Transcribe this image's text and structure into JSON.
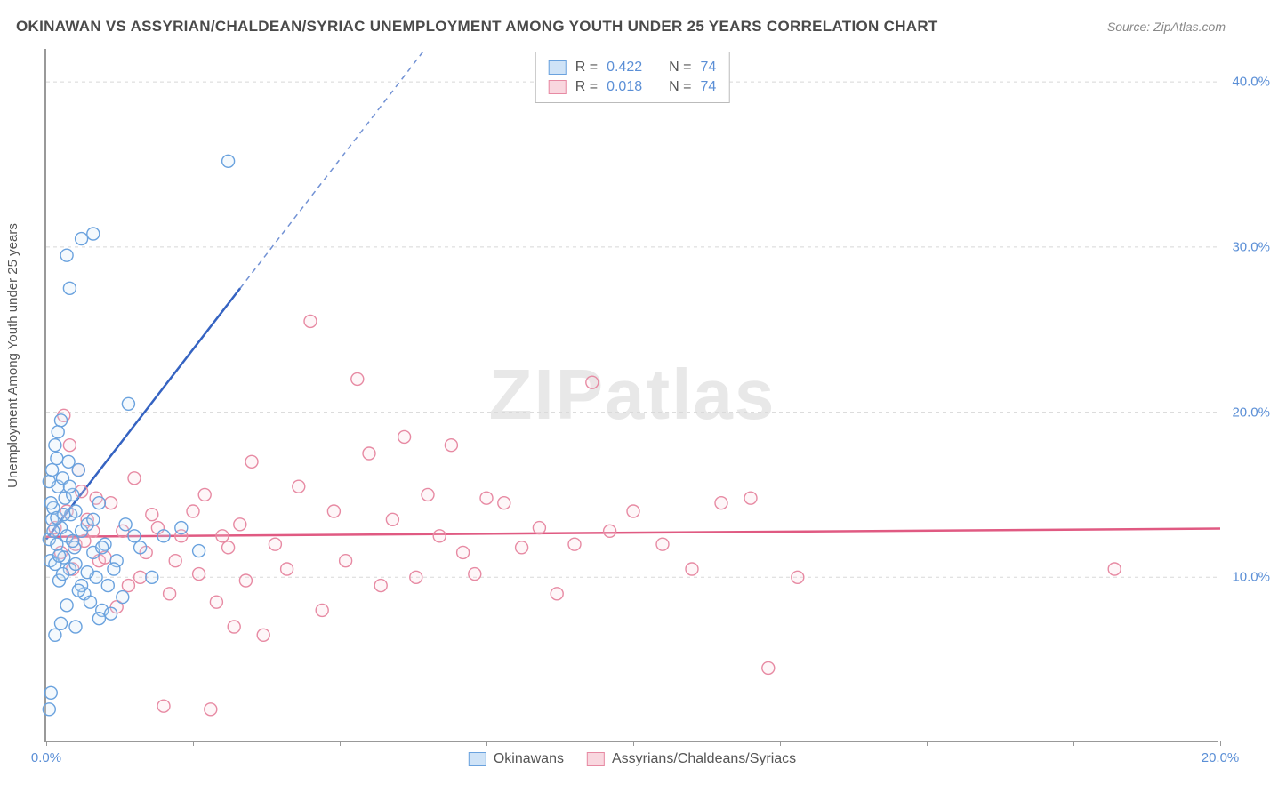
{
  "title": "OKINAWAN VS ASSYRIAN/CHALDEAN/SYRIAC UNEMPLOYMENT AMONG YOUTH UNDER 25 YEARS CORRELATION CHART",
  "source": "Source: ZipAtlas.com",
  "ylabel": "Unemployment Among Youth under 25 years",
  "watermark_bold": "ZIP",
  "watermark_rest": "atlas",
  "chart": {
    "type": "scatter",
    "background_color": "#ffffff",
    "grid_color": "#d8d8d8",
    "axis_color": "#999999",
    "xlim": [
      0,
      20
    ],
    "ylim": [
      0,
      42
    ],
    "x_ticks": [
      0,
      2.5,
      5,
      7.5,
      10,
      12.5,
      15,
      17.5,
      20
    ],
    "x_tick_labels_shown": {
      "0": "0.0%",
      "20": "20.0%"
    },
    "y_ticks": [
      10,
      20,
      30,
      40
    ],
    "y_tick_labels": [
      "10.0%",
      "20.0%",
      "30.0%",
      "40.0%"
    ],
    "marker_radius": 7,
    "marker_stroke_width": 1.4,
    "marker_fill_opacity": 0.22,
    "trend_line_width": 2.5,
    "trend_dash": "6,5"
  },
  "stats_legend": [
    {
      "swatch_fill": "#cfe3f7",
      "swatch_stroke": "#6aa2de",
      "r": "0.422",
      "n": "74"
    },
    {
      "swatch_fill": "#f9d7df",
      "swatch_stroke": "#e78aa3",
      "r": "0.018",
      "n": "74"
    }
  ],
  "series_legend": [
    {
      "swatch_fill": "#cfe3f7",
      "swatch_stroke": "#6aa2de",
      "label": "Okinawans"
    },
    {
      "swatch_fill": "#f9d7df",
      "swatch_stroke": "#e78aa3",
      "label": "Assyrians/Chaldeans/Syriacs"
    }
  ],
  "series": {
    "okinawans": {
      "stroke": "#6aa2de",
      "fill": "#cfe3f7",
      "trend_color": "#3563c2",
      "trend_intercept": 12.3,
      "trend_slope": 4.6,
      "points": [
        [
          0.05,
          12.3
        ],
        [
          0.07,
          11.0
        ],
        [
          0.1,
          13.5
        ],
        [
          0.12,
          14.2
        ],
        [
          0.15,
          10.8
        ],
        [
          0.18,
          12.0
        ],
        [
          0.2,
          15.5
        ],
        [
          0.22,
          9.8
        ],
        [
          0.25,
          13.0
        ],
        [
          0.28,
          16.0
        ],
        [
          0.3,
          11.2
        ],
        [
          0.32,
          14.8
        ],
        [
          0.35,
          12.5
        ],
        [
          0.38,
          17.0
        ],
        [
          0.4,
          10.5
        ],
        [
          0.42,
          13.8
        ],
        [
          0.45,
          15.0
        ],
        [
          0.48,
          11.8
        ],
        [
          0.5,
          14.0
        ],
        [
          0.55,
          16.5
        ],
        [
          0.6,
          12.8
        ],
        [
          0.65,
          9.0
        ],
        [
          0.7,
          13.2
        ],
        [
          0.75,
          8.5
        ],
        [
          0.8,
          11.5
        ],
        [
          0.85,
          10.0
        ],
        [
          0.9,
          14.5
        ],
        [
          0.95,
          8.0
        ],
        [
          1.0,
          12.0
        ],
        [
          1.05,
          9.5
        ],
        [
          1.1,
          7.8
        ],
        [
          1.2,
          11.0
        ],
        [
          1.3,
          8.8
        ],
        [
          1.4,
          20.5
        ],
        [
          1.5,
          12.5
        ],
        [
          0.15,
          18.0
        ],
        [
          0.18,
          17.2
        ],
        [
          0.2,
          18.8
        ],
        [
          0.25,
          19.5
        ],
        [
          0.6,
          30.5
        ],
        [
          0.35,
          29.5
        ],
        [
          0.4,
          27.5
        ],
        [
          0.8,
          30.8
        ],
        [
          3.1,
          35.2
        ],
        [
          2.6,
          11.6
        ],
        [
          0.25,
          7.2
        ],
        [
          0.35,
          8.3
        ],
        [
          0.5,
          7.0
        ],
        [
          0.6,
          9.5
        ],
        [
          0.9,
          7.5
        ],
        [
          0.15,
          6.5
        ],
        [
          0.08,
          3.0
        ],
        [
          0.05,
          2.0
        ],
        [
          0.12,
          12.8
        ],
        [
          0.18,
          13.6
        ],
        [
          0.08,
          14.5
        ],
        [
          0.05,
          15.8
        ],
        [
          0.1,
          16.5
        ],
        [
          0.22,
          11.3
        ],
        [
          0.28,
          10.2
        ],
        [
          0.3,
          13.8
        ],
        [
          0.4,
          15.5
        ],
        [
          0.45,
          12.2
        ],
        [
          0.5,
          10.8
        ],
        [
          0.55,
          9.2
        ],
        [
          0.7,
          10.3
        ],
        [
          0.8,
          13.5
        ],
        [
          0.95,
          11.8
        ],
        [
          1.15,
          10.5
        ],
        [
          1.35,
          13.2
        ],
        [
          1.6,
          11.8
        ],
        [
          1.8,
          10.0
        ],
        [
          2.0,
          12.5
        ],
        [
          2.3,
          13.0
        ]
      ]
    },
    "assyrians": {
      "stroke": "#e78aa3",
      "fill": "#f9d7df",
      "trend_color": "#e05a82",
      "trend_intercept": 12.45,
      "trend_slope": 0.025,
      "points": [
        [
          0.3,
          19.8
        ],
        [
          0.5,
          12.0
        ],
        [
          0.7,
          13.5
        ],
        [
          0.9,
          11.0
        ],
        [
          1.1,
          14.5
        ],
        [
          1.3,
          12.8
        ],
        [
          1.5,
          16.0
        ],
        [
          1.7,
          11.5
        ],
        [
          1.9,
          13.0
        ],
        [
          2.1,
          9.0
        ],
        [
          2.3,
          12.5
        ],
        [
          2.5,
          14.0
        ],
        [
          2.7,
          15.0
        ],
        [
          2.9,
          8.5
        ],
        [
          3.1,
          11.8
        ],
        [
          3.3,
          13.2
        ],
        [
          3.5,
          17.0
        ],
        [
          3.7,
          6.5
        ],
        [
          3.9,
          12.0
        ],
        [
          4.1,
          10.5
        ],
        [
          4.3,
          15.5
        ],
        [
          4.5,
          25.5
        ],
        [
          4.7,
          8.0
        ],
        [
          4.9,
          14.0
        ],
        [
          5.1,
          11.0
        ],
        [
          5.3,
          22.0
        ],
        [
          5.5,
          17.5
        ],
        [
          5.7,
          9.5
        ],
        [
          5.9,
          13.5
        ],
        [
          6.1,
          18.5
        ],
        [
          6.3,
          10.0
        ],
        [
          6.5,
          15.0
        ],
        [
          6.7,
          12.5
        ],
        [
          6.9,
          18.0
        ],
        [
          7.1,
          11.5
        ],
        [
          7.3,
          10.2
        ],
        [
          7.5,
          14.8
        ],
        [
          7.8,
          14.5
        ],
        [
          8.1,
          11.8
        ],
        [
          8.4,
          13.0
        ],
        [
          8.7,
          9.0
        ],
        [
          9.0,
          12.0
        ],
        [
          9.3,
          21.8
        ],
        [
          9.6,
          12.8
        ],
        [
          10.0,
          14.0
        ],
        [
          10.5,
          12.0
        ],
        [
          11.0,
          10.5
        ],
        [
          11.5,
          14.5
        ],
        [
          12.0,
          14.8
        ],
        [
          12.3,
          4.5
        ],
        [
          12.8,
          10.0
        ],
        [
          18.2,
          10.5
        ],
        [
          2.0,
          2.2
        ],
        [
          2.8,
          2.0
        ],
        [
          3.2,
          7.0
        ],
        [
          1.2,
          8.2
        ],
        [
          1.6,
          10.0
        ],
        [
          0.4,
          18.0
        ],
        [
          0.6,
          15.2
        ],
        [
          0.8,
          12.8
        ],
        [
          0.15,
          13.0
        ],
        [
          0.25,
          11.5
        ],
        [
          0.35,
          14.0
        ],
        [
          0.45,
          10.5
        ],
        [
          0.55,
          16.5
        ],
        [
          0.65,
          12.2
        ],
        [
          0.85,
          14.8
        ],
        [
          1.0,
          11.2
        ],
        [
          1.4,
          9.5
        ],
        [
          1.8,
          13.8
        ],
        [
          2.2,
          11.0
        ],
        [
          2.6,
          10.2
        ],
        [
          3.0,
          12.5
        ],
        [
          3.4,
          9.8
        ]
      ]
    }
  }
}
